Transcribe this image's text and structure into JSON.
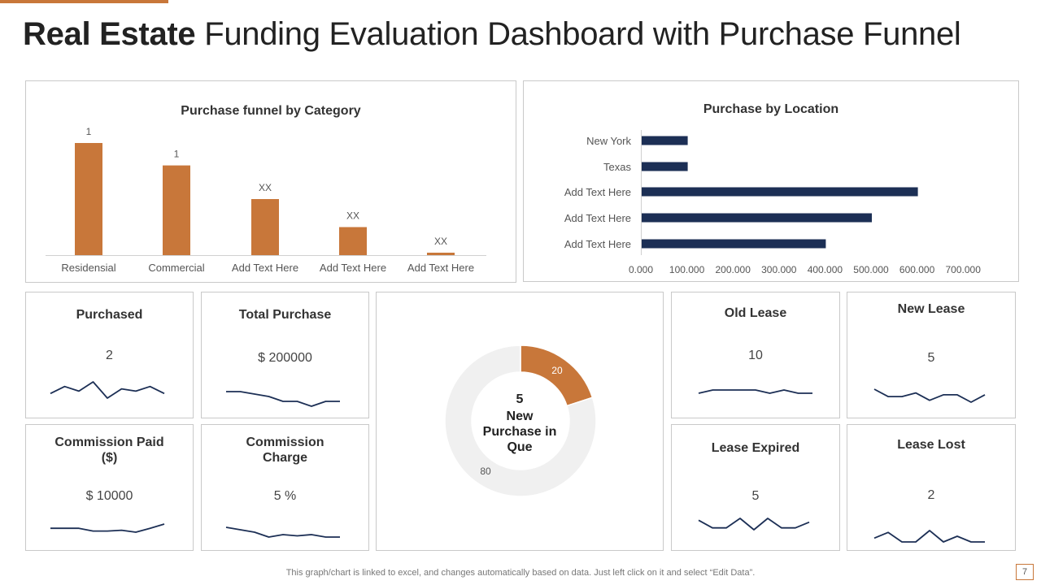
{
  "slide": {
    "title_bold": "Real Estate",
    "title_rest": "Funding Evaluation Dashboard with Purchase Funnel",
    "footer": "This graph/chart is linked to excel,  and changes automatically based on data. Just left click on it and select “Edit Data”.",
    "page_number": "7",
    "accent_color": "#c8773a",
    "navy_color": "#1c2f55"
  },
  "chart_data": [
    {
      "type": "bar",
      "title": "Purchase funnel by Category",
      "categories": [
        "Residensial",
        "Commercial",
        "Add Text Here",
        "Add Text Here",
        "Add Text Here"
      ],
      "values": [
        1,
        0.8,
        0.5,
        0.25,
        0.02
      ],
      "data_labels": [
        "1",
        "1",
        "XX",
        "XX",
        "XX"
      ],
      "color": "#c8773a"
    },
    {
      "type": "bar",
      "orientation": "horizontal",
      "title": "Purchase by Location",
      "categories": [
        "New York",
        "Texas",
        "Add Text Here",
        "Add Text Here",
        "Add Text Here"
      ],
      "values": [
        100,
        100,
        600,
        500,
        400
      ],
      "xlim": [
        0,
        700
      ],
      "xticks": [
        "0.000",
        "100.000",
        "200.000",
        "300.000",
        "400.000",
        "500.000",
        "600.000",
        "700.000"
      ],
      "color": "#1c2f55"
    },
    {
      "type": "pie",
      "title": "New Purchase in Que",
      "slices": [
        {
          "label": "20",
          "value": 20,
          "color": "#c8773a"
        },
        {
          "label": "80",
          "value": 80,
          "color": "#f0f0f0"
        }
      ],
      "center_value": "5",
      "center_label": "New Purchase in Que"
    }
  ],
  "cards": {
    "purchased": {
      "title": "Purchased",
      "value": "2",
      "spark": [
        4,
        7,
        5,
        9,
        2,
        6,
        5,
        7,
        4
      ]
    },
    "total_purchase": {
      "title": "Total Purchase",
      "value": "$ 200000",
      "spark": [
        9,
        9,
        8,
        7,
        5,
        5,
        3,
        5,
        5
      ]
    },
    "commission_paid": {
      "title": "Commission Paid ($)",
      "value": "$ 10000",
      "spark": [
        5,
        5,
        5,
        4,
        4,
        4.3,
        3.6,
        5,
        6.5
      ]
    },
    "commission_charge": {
      "title": "Commission Charge",
      "value": "5 %",
      "spark": [
        8,
        7,
        6,
        4,
        5,
        4.5,
        5,
        4,
        4
      ]
    },
    "old_lease": {
      "title": "Old Lease",
      "value": "10",
      "spark": [
        5,
        6,
        6,
        6,
        6,
        5,
        6,
        5,
        5
      ]
    },
    "new_lease": {
      "title": "New Lease",
      "value": "5",
      "spark": [
        8,
        4,
        4,
        6,
        2,
        5,
        5,
        1,
        5
      ]
    },
    "lease_expired": {
      "title": "Lease Expired",
      "value": "5",
      "spark": [
        8,
        4,
        4,
        9,
        3,
        9,
        4,
        4,
        7
      ]
    },
    "lease_lost": {
      "title": "Lease Lost",
      "value": "2",
      "spark": [
        4,
        7,
        2,
        2,
        8,
        2,
        5,
        2,
        2
      ]
    }
  }
}
